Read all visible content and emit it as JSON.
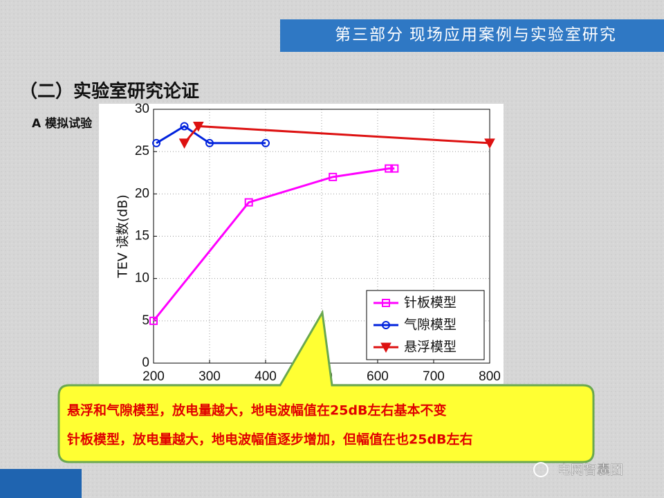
{
  "header": {
    "title": "第三部分 现场应用案例与实验室研究"
  },
  "section_title": "（二）实验室研究论证",
  "subsection_title": "A 模拟试验",
  "chart_data": {
    "type": "line",
    "ylabel": "TEV 读数(dB)",
    "xlim": [
      200,
      800
    ],
    "xticks": [
      200,
      300,
      400,
      500,
      600,
      700,
      800
    ],
    "ylim": [
      0,
      30
    ],
    "yticks": [
      0,
      5,
      10,
      15,
      20,
      25,
      30
    ],
    "grid": true,
    "legend": "lower right",
    "series": [
      {
        "name": "针板模型",
        "color": "#ff00ff",
        "marker": "square",
        "x": [
          200,
          370,
          520,
          620,
          630
        ],
        "values": [
          5,
          19,
          22,
          23,
          23
        ]
      },
      {
        "name": "气隙模型",
        "color": "#0022dd",
        "marker": "circle",
        "x": [
          205,
          255,
          300,
          400
        ],
        "values": [
          26,
          28,
          26,
          26
        ]
      },
      {
        "name": "悬浮模型",
        "color": "#dd1111",
        "marker": "triangle-down",
        "x": [
          255,
          280,
          800
        ],
        "values": [
          26,
          28,
          26
        ]
      }
    ]
  },
  "callout": {
    "lines": [
      "悬浮和气隙模型，放电量越大，地电波幅值在25dB左右基本不变",
      "针板模型，放电量越大，地电波幅值逐步增加，但幅值在也25dB左右"
    ]
  },
  "watermark": "电网智囊团"
}
